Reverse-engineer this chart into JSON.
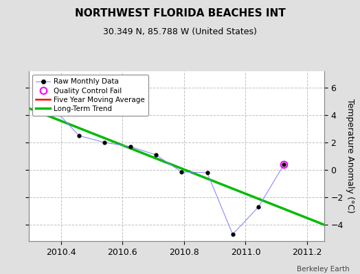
{
  "title": "NORTHWEST FLORIDA BEACHES INT",
  "subtitle": "30.349 N, 85.788 W (United States)",
  "watermark": "Berkeley Earth",
  "ylabel": "Temperature Anomaly (°C)",
  "xlim": [
    2010.295,
    2011.255
  ],
  "ylim": [
    -5.2,
    7.2
  ],
  "xticks": [
    2010.4,
    2010.6,
    2010.8,
    2011.0,
    2011.2
  ],
  "yticks": [
    -4,
    -2,
    0,
    2,
    4,
    6
  ],
  "background_color": "#e0e0e0",
  "plot_background": "#ffffff",
  "grid_color": "#c0c0c0",
  "raw_x": [
    2010.375,
    2010.458,
    2010.542,
    2010.625,
    2010.708,
    2010.792,
    2010.875,
    2010.958,
    2011.042,
    2011.125
  ],
  "raw_y": [
    4.5,
    2.5,
    2.0,
    1.7,
    1.1,
    -0.15,
    -0.2,
    -4.7,
    -2.7,
    0.4
  ],
  "qc_fail_x": [
    2011.125
  ],
  "qc_fail_y": [
    0.4
  ],
  "trend_x": [
    2010.295,
    2011.255
  ],
  "trend_y": [
    4.5,
    -4.0
  ],
  "raw_line_color": "#8888ff",
  "raw_marker_color": "#000000",
  "qc_color": "#ff00ff",
  "trend_color": "#00bb00",
  "five_year_color": "#ff0000",
  "title_fontsize": 11,
  "subtitle_fontsize": 9,
  "tick_fontsize": 9,
  "ylabel_fontsize": 9
}
